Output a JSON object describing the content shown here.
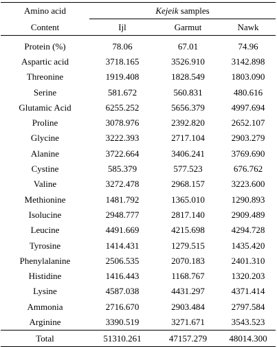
{
  "header": {
    "col0_row1": "Amino acid",
    "col0_row2": "Content",
    "samples_italic": "Kejeik",
    "samples_rest": " samples",
    "columns": [
      "Ijl",
      "Garmut",
      "Nawk"
    ]
  },
  "rows": [
    {
      "label": "Protein (%)",
      "values": [
        "78.06",
        "67.01",
        "74.96"
      ]
    },
    {
      "label": "Aspartic acid",
      "values": [
        "3718.165",
        "3526.910",
        "3142.898"
      ]
    },
    {
      "label": "Threonine",
      "values": [
        "1919.408",
        "1828.549",
        "1803.090"
      ]
    },
    {
      "label": "Serine",
      "values": [
        "581.672",
        "560.831",
        "480.616"
      ]
    },
    {
      "label": "Glutamic Acid",
      "values": [
        "6255.252",
        "5656.379",
        "4997.694"
      ]
    },
    {
      "label": "Proline",
      "values": [
        "3078.976",
        "2392.820",
        "2652.107"
      ]
    },
    {
      "label": "Glycine",
      "values": [
        "3222.393",
        "2717.104",
        "2903.279"
      ]
    },
    {
      "label": "Alanine",
      "values": [
        "3722.664",
        "3406.241",
        "3769.690"
      ]
    },
    {
      "label": "Cystine",
      "values": [
        "585.379",
        "577.523",
        "676.762"
      ]
    },
    {
      "label": "Valine",
      "values": [
        "3272.478",
        "2968.157",
        "3223.600"
      ]
    },
    {
      "label": "Methionine",
      "values": [
        "1481.792",
        "1365.010",
        "1290.893"
      ]
    },
    {
      "label": "Isolucine",
      "values": [
        "2948.777",
        "2817.140",
        "2909.489"
      ]
    },
    {
      "label": "Leucine",
      "values": [
        "4491.669",
        "4215.698",
        "4294.728"
      ]
    },
    {
      "label": "Tyrosine",
      "values": [
        "1414.431",
        "1279.515",
        "1435.420"
      ]
    },
    {
      "label": "Phenylalanine",
      "values": [
        "2506.535",
        "2070.183",
        "2401.310"
      ]
    },
    {
      "label": "Histidine",
      "values": [
        "1416.443",
        "1168.767",
        "1320.203"
      ]
    },
    {
      "label": "Lysine",
      "values": [
        "4587.038",
        "4431.297",
        "4371.414"
      ]
    },
    {
      "label": "Ammonia",
      "values": [
        "2716.670",
        "2903.484",
        "2797.584"
      ]
    },
    {
      "label": "Arginine",
      "values": [
        "3390.519",
        "3271.671",
        "3543.523"
      ]
    }
  ],
  "total": {
    "label": "Total",
    "values": [
      "51310.261",
      "47157.279",
      "48014.300"
    ]
  }
}
